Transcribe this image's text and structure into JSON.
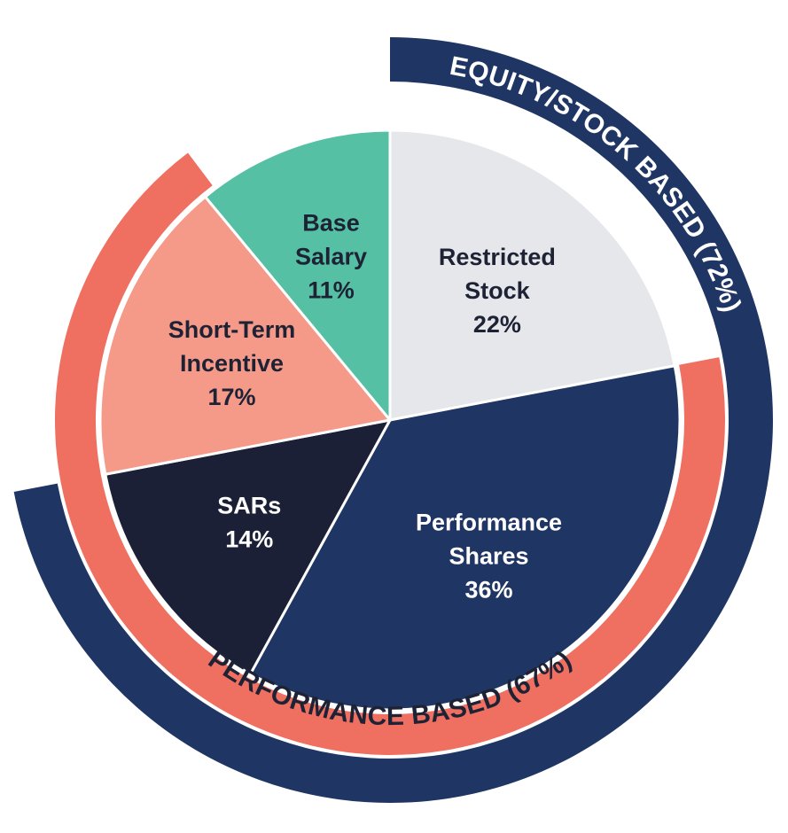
{
  "chart_data": {
    "type": "pie",
    "slices": [
      {
        "label": [
          "Restricted",
          "Stock"
        ],
        "percent_label": "22%",
        "value": 22,
        "color": "#e6e7eb",
        "text_color": "#1e2235"
      },
      {
        "label": [
          "Performance",
          "Shares"
        ],
        "percent_label": "36%",
        "value": 36,
        "color": "#1f3563",
        "text_color": "#ffffff"
      },
      {
        "label": [
          "SARs"
        ],
        "percent_label": "14%",
        "value": 14,
        "color": "#1b2036",
        "text_color": "#ffffff"
      },
      {
        "label": [
          "Short-Term",
          "Incentive"
        ],
        "percent_label": "17%",
        "value": 17,
        "color": "#f59a89",
        "text_color": "#1e2235"
      },
      {
        "label": [
          "Base",
          "Salary"
        ],
        "percent_label": "11%",
        "value": 11,
        "color": "#55c0a3",
        "text_color": "#1e2235"
      }
    ],
    "rings": [
      {
        "label": "EQUITY/STOCK BASED (72%)",
        "value": 72,
        "color": "#1f3563",
        "text_color": "#ffffff"
      },
      {
        "label": "PERFORMANCE BASED (67%)",
        "value": 67,
        "color": "#ef6f61",
        "text_color": "#1e2235"
      }
    ]
  }
}
